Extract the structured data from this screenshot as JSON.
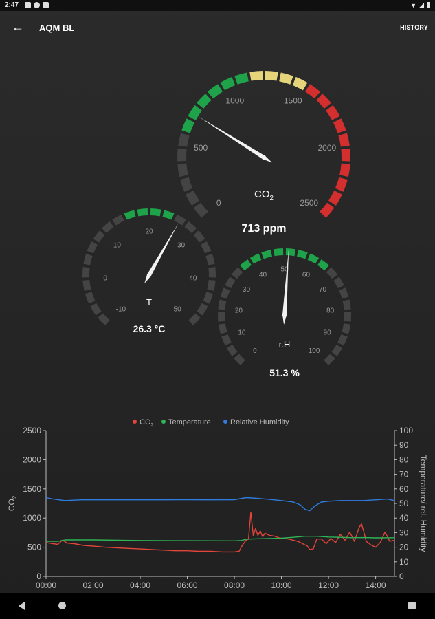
{
  "statusbar": {
    "time": "2:47"
  },
  "toolbar": {
    "title": "AQM BL",
    "history_label": "HISTORY"
  },
  "colors": {
    "green": "#1fa34a",
    "yellow": "#e5d47a",
    "red": "#d32f2f",
    "grey": "#444444",
    "needle": "#f2f2f2",
    "co2_series": "#e4453a",
    "temp_series": "#2fb457",
    "rh_series": "#2f7de0"
  },
  "gauges": {
    "co2": {
      "label_main": "CO",
      "label_sub": "2",
      "value": 713,
      "value_text": "713 ppm",
      "min": 0,
      "max": 2500,
      "ticks": [
        "0",
        "500",
        "1000",
        "1500",
        "2000",
        "2500"
      ],
      "segments": [
        "grey",
        "grey",
        "grey",
        "grey",
        "grey",
        "grey",
        "green",
        "green",
        "green",
        "green",
        "green",
        "green",
        "yellow",
        "yellow",
        "yellow",
        "yellow",
        "red",
        "red",
        "red",
        "red",
        "red",
        "red",
        "red",
        "red",
        "red",
        "red"
      ]
    },
    "temperature": {
      "label_main": "T",
      "value": 26.3,
      "value_text": "26.3 °C",
      "min": -10,
      "max": 50,
      "ticks": [
        "-10",
        "0",
        "10",
        "20",
        "30",
        "40",
        "50"
      ],
      "segments": [
        "grey",
        "grey",
        "grey",
        "grey",
        "grey",
        "grey",
        "grey",
        "grey",
        "grey",
        "grey",
        "green",
        "green",
        "green",
        "green",
        "grey",
        "grey",
        "grey",
        "grey",
        "grey",
        "grey",
        "grey",
        "grey",
        "grey",
        "grey"
      ]
    },
    "humidity": {
      "label_main": "r.H",
      "value": 51.3,
      "value_text": "51.3 %",
      "min": 0,
      "max": 100,
      "ticks": [
        "0",
        "10",
        "20",
        "30",
        "40",
        "50",
        "60",
        "70",
        "80",
        "90",
        "100"
      ],
      "segments": [
        "grey",
        "grey",
        "grey",
        "grey",
        "grey",
        "grey",
        "grey",
        "grey",
        "grey",
        "green",
        "green",
        "green",
        "green",
        "green",
        "green",
        "green",
        "green",
        "grey",
        "grey",
        "grey",
        "grey",
        "grey",
        "grey",
        "grey",
        "grey",
        "grey"
      ]
    }
  },
  "chart_data": {
    "type": "line",
    "legend": [
      {
        "main": "CO",
        "sub": "2",
        "color": "#e4453a"
      },
      {
        "main": "Temperature",
        "sub": "",
        "color": "#2fb457"
      },
      {
        "main": "Relative Humidity",
        "sub": "",
        "color": "#2f7de0"
      }
    ],
    "legend_position": "top-center",
    "x_ticks": [
      "00:00",
      "02:00",
      "04:00",
      "06:00",
      "08:00",
      "10:00",
      "12:00",
      "14:00"
    ],
    "x_range": [
      0,
      14.8
    ],
    "y_left": {
      "label_main": "CO",
      "label_sub": "2",
      "range": [
        0,
        2500
      ],
      "ticks": [
        "0",
        "500",
        "1000",
        "1500",
        "2000",
        "2500"
      ]
    },
    "y_right": {
      "label": "Temperature/ rel. Humidity",
      "range": [
        0,
        100
      ],
      "ticks": [
        "0",
        "10",
        "20",
        "30",
        "40",
        "50",
        "60",
        "70",
        "80",
        "90",
        "100"
      ]
    },
    "series": [
      {
        "axis": "left",
        "color": "#e4453a",
        "x": [
          0,
          0.3,
          0.5,
          0.7,
          0.9,
          1.2,
          1.6,
          2.0,
          2.5,
          3.0,
          3.5,
          4.0,
          4.5,
          5.0,
          5.5,
          6.0,
          6.5,
          7.0,
          7.5,
          8.0,
          8.2,
          8.35,
          8.5,
          8.6,
          8.7,
          8.8,
          8.9,
          9.0,
          9.1,
          9.2,
          9.3,
          9.5,
          9.7,
          9.9,
          10.1,
          10.3,
          10.5,
          10.7,
          10.9,
          11.1,
          11.2,
          11.35,
          11.5,
          11.7,
          11.9,
          12.1,
          12.3,
          12.5,
          12.7,
          12.9,
          13.1,
          13.3,
          13.4,
          13.5,
          13.6,
          13.8,
          14.0,
          14.2,
          14.4,
          14.6,
          14.8
        ],
        "y": [
          580,
          560,
          550,
          620,
          570,
          560,
          530,
          520,
          500,
          490,
          480,
          470,
          460,
          450,
          440,
          440,
          430,
          430,
          420,
          420,
          430,
          540,
          620,
          640,
          1100,
          700,
          820,
          700,
          780,
          680,
          740,
          700,
          690,
          660,
          650,
          640,
          620,
          600,
          560,
          520,
          460,
          470,
          640,
          640,
          560,
          650,
          580,
          720,
          620,
          760,
          600,
          840,
          900,
          760,
          600,
          540,
          500,
          580,
          760,
          600,
          620
        ]
      },
      {
        "axis": "right",
        "color": "#2fb457",
        "x": [
          0,
          0.5,
          0.8,
          2,
          4,
          6,
          8,
          8.3,
          8.5,
          9,
          9.5,
          10,
          10.5,
          11,
          11.5,
          12,
          12.5,
          13,
          13.5,
          14,
          14.8
        ],
        "y": [
          24,
          24,
          25,
          25,
          24.6,
          24.5,
          24.4,
          24.6,
          25.5,
          25.8,
          26,
          26.2,
          26.8,
          27.5,
          27.5,
          27,
          26.8,
          26.5,
          26.6,
          26.4,
          26.5
        ]
      },
      {
        "axis": "right",
        "color": "#2f7de0",
        "x": [
          0,
          0.3,
          0.8,
          1.5,
          2,
          3,
          4,
          5,
          6,
          7,
          8,
          8.5,
          9,
          9.5,
          10,
          10.5,
          10.8,
          11.0,
          11.2,
          11.4,
          11.7,
          12,
          12.5,
          13,
          13.5,
          14,
          14.5,
          14.8
        ],
        "y": [
          54,
          53,
          52,
          52.5,
          52.5,
          52.5,
          52.5,
          52.5,
          52.6,
          52.5,
          52.6,
          54,
          53.5,
          52.8,
          52,
          51,
          49,
          46,
          45,
          48,
          51,
          51.5,
          52,
          52,
          52,
          52.5,
          53,
          52
        ]
      }
    ]
  }
}
